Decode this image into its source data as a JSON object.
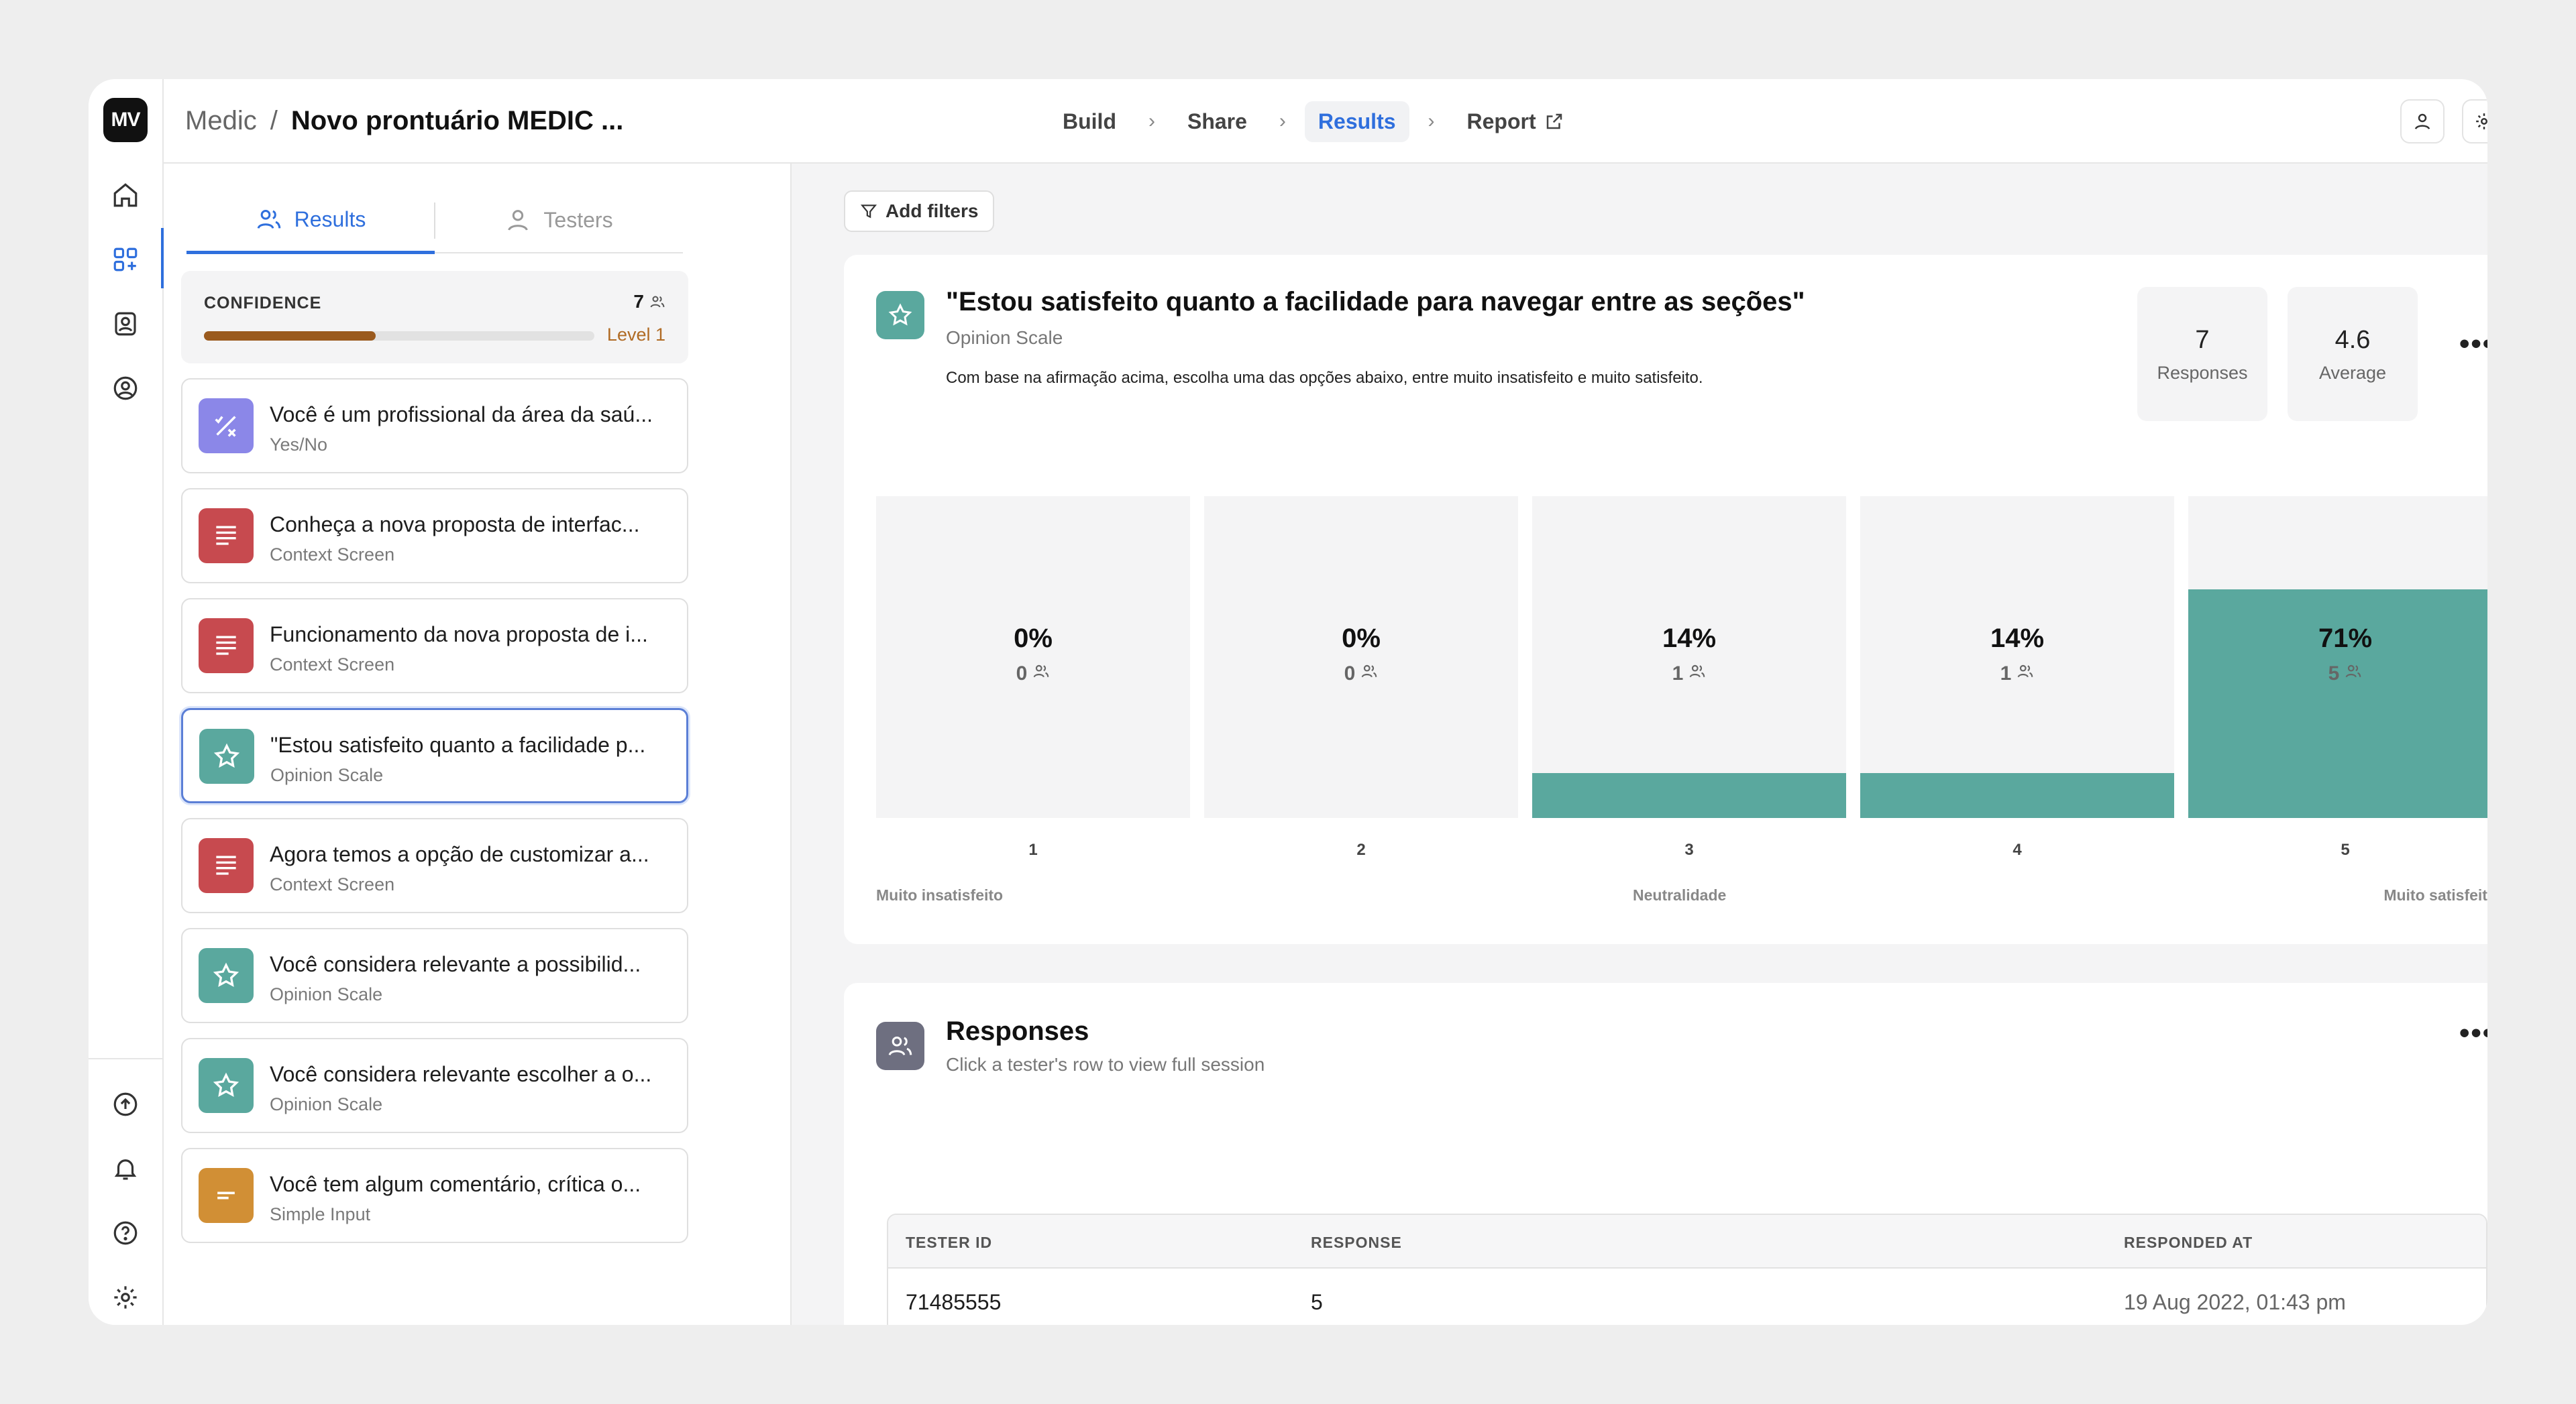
{
  "app": {
    "logo_text": "MV"
  },
  "breadcrumb": {
    "project": "Medic",
    "separator": "/",
    "test": "Novo prontuário MEDIC ..."
  },
  "steps": [
    {
      "label": "Build"
    },
    {
      "label": "Share"
    },
    {
      "label": "Results",
      "active": true
    },
    {
      "label": "Report"
    }
  ],
  "sidebar_tabs": {
    "results": "Results",
    "testers": "Testers"
  },
  "confidence": {
    "label": "CONFIDENCE",
    "count": "7",
    "level": "Level 1",
    "progress": 0.44
  },
  "questions": [
    {
      "title": "Você é um profissional da área da saú...",
      "type": "Yes/No",
      "icon": "yes-no-icon",
      "color": "#8b87e8"
    },
    {
      "title": "Conheça a nova proposta de interfac...",
      "type": "Context Screen",
      "icon": "context-screen-icon",
      "color": "#c74a4f"
    },
    {
      "title": "Funcionamento da nova proposta de i...",
      "type": "Context Screen",
      "icon": "context-screen-icon",
      "color": "#c74a4f"
    },
    {
      "title": "\"Estou satisfeito quanto a facilidade p...",
      "type": "Opinion Scale",
      "icon": "star-icon",
      "color": "#5aa89e",
      "selected": true
    },
    {
      "title": "Agora temos a opção de customizar a...",
      "type": "Context Screen",
      "icon": "context-screen-icon",
      "color": "#c74a4f"
    },
    {
      "title": "Você considera relevante a possibilid...",
      "type": "Opinion Scale",
      "icon": "star-icon",
      "color": "#5aa89e"
    },
    {
      "title": "Você considera relevante escolher a o...",
      "type": "Opinion Scale",
      "icon": "star-icon",
      "color": "#5aa89e"
    },
    {
      "title": "Você tem algum comentário, crítica o...",
      "type": "Simple Input",
      "icon": "simple-input-icon",
      "color": "#d18f35"
    }
  ],
  "filters": {
    "label": "Add filters"
  },
  "question_card": {
    "title": "\"Estou satisfeito quanto a facilidade para navegar entre as seções\"",
    "type": "Opinion Scale",
    "description": "Com base na afirmação acima, escolha uma das opções abaixo, entre muito insatisfeito e muito satisfeito.",
    "responses_value": "7",
    "responses_label": "Responses",
    "average_value": "4.6",
    "average_label": "Average",
    "more": "•••"
  },
  "chart_data": {
    "type": "bar",
    "categories": [
      "1",
      "2",
      "3",
      "4",
      "5"
    ],
    "percent_labels": [
      "0%",
      "0%",
      "14%",
      "14%",
      "71%"
    ],
    "values": [
      0,
      0,
      14,
      14,
      71
    ],
    "counts": [
      0,
      0,
      1,
      1,
      5
    ],
    "scale_labels": {
      "left": "Muito insatisfeito",
      "middle": "Neutralidade",
      "right": "Muito satisfeito"
    },
    "bar_color": "#5aa89e",
    "ylim": [
      0,
      100
    ]
  },
  "responses_card": {
    "title": "Responses",
    "subtitle": "Click a tester's row to view full session",
    "more": "•••",
    "columns": [
      "TESTER ID",
      "RESPONSE",
      "RESPONDED AT"
    ],
    "rows": [
      {
        "tester_id": "71485555",
        "response": "5",
        "responded_at": "19 Aug 2022, 01:43 pm"
      }
    ]
  }
}
